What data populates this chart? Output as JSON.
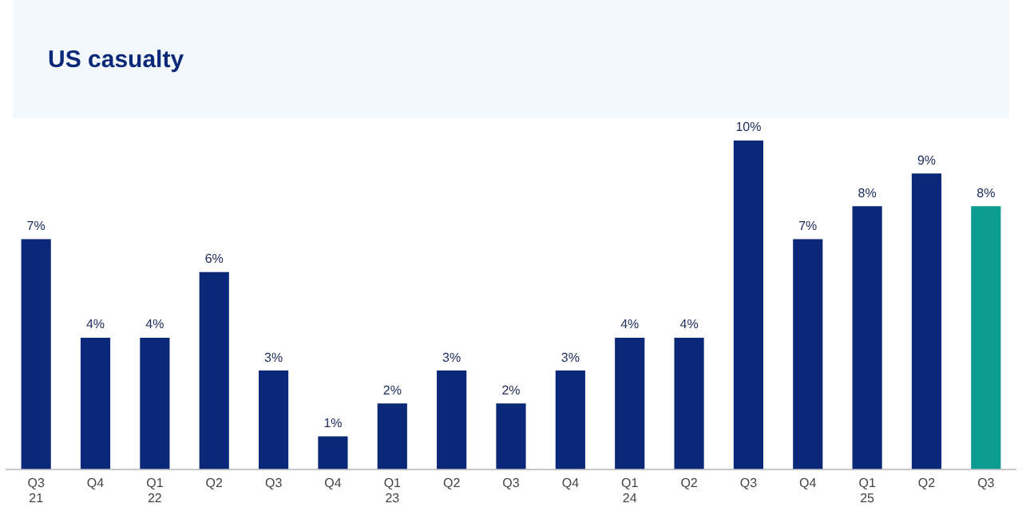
{
  "chart_data": {
    "type": "bar",
    "title": "US casualty",
    "categories": [
      "Q3\n21",
      "Q4",
      "Q1\n22",
      "Q2",
      "Q3",
      "Q4",
      "Q1\n23",
      "Q2",
      "Q3",
      "Q4",
      "Q1\n24",
      "Q2",
      "Q3",
      "Q4",
      "Q1\n25",
      "Q2",
      "Q3"
    ],
    "values": [
      7,
      4,
      4,
      6,
      3,
      1,
      2,
      3,
      2,
      3,
      4,
      4,
      10,
      7,
      8,
      9,
      8
    ],
    "colors": [
      "#0b2878",
      "#0b2878",
      "#0b2878",
      "#0b2878",
      "#0b2878",
      "#0b2878",
      "#0b2878",
      "#0b2878",
      "#0b2878",
      "#0b2878",
      "#0b2878",
      "#0b2878",
      "#0b2878",
      "#0b2878",
      "#0b2878",
      "#0b2878",
      "#0a9c8f"
    ],
    "value_labels": [
      "7%",
      "4%",
      "4%",
      "6%",
      "3%",
      "1%",
      "2%",
      "3%",
      "2%",
      "3%",
      "4%",
      "4%",
      "10%",
      "7%",
      "8%",
      "9%",
      "8%"
    ],
    "grid": false,
    "legend": false
  }
}
